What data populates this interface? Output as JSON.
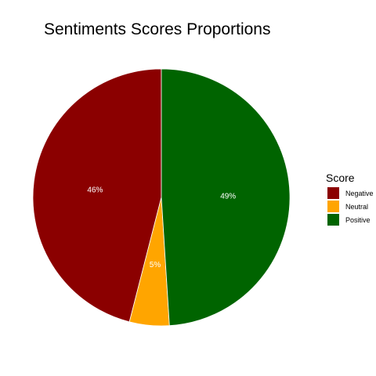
{
  "chart_data": {
    "type": "pie",
    "title": "Sentiments Scores Proportions",
    "legend_title": "Score",
    "legend_position": "right",
    "grid": false,
    "categories": [
      "Negative",
      "Neutral",
      "Positive"
    ],
    "values": [
      46,
      5,
      49
    ],
    "labels": [
      "46%",
      "5%",
      "49%"
    ],
    "colors": [
      "#8b0000",
      "#ffa500",
      "#006400"
    ]
  }
}
